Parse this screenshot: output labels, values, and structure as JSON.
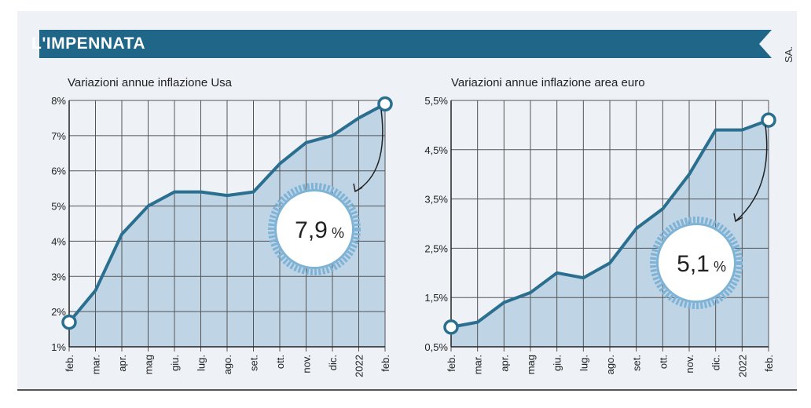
{
  "banner": {
    "title": "L'IMPENNATA",
    "credit": "SA."
  },
  "colors": {
    "banner": "#1f6688",
    "line": "#2a6f8f",
    "fill": "#b9d2e4",
    "grid": "#555555",
    "badge_ring": "#7fb3d6"
  },
  "chart_data": [
    {
      "type": "area",
      "title": "Variazioni annue inflazione Usa",
      "categories": [
        "feb.",
        "mar.",
        "apr.",
        "mag",
        "giu.",
        "lug.",
        "ago.",
        "set.",
        "ott.",
        "nov.",
        "dic.",
        "2022",
        "feb."
      ],
      "values": [
        1.7,
        2.6,
        4.2,
        5.0,
        5.4,
        5.4,
        5.3,
        5.4,
        6.2,
        6.8,
        7.0,
        7.5,
        7.9
      ],
      "ylim": [
        1,
        8
      ],
      "yticks": [
        1,
        2,
        3,
        4,
        5,
        6,
        7,
        8
      ],
      "ytick_labels": [
        "1%",
        "2%",
        "3%",
        "4%",
        "5%",
        "6%",
        "7%",
        "8%"
      ],
      "annotation": {
        "value": "7,9",
        "unit": "%"
      },
      "grid": true
    },
    {
      "type": "area",
      "title": "Variazioni annue inflazione area euro",
      "categories": [
        "feb.",
        "mar.",
        "apr.",
        "mag",
        "giu.",
        "lug.",
        "ago.",
        "set.",
        "ott.",
        "nov.",
        "dic.",
        "2022",
        "feb."
      ],
      "values": [
        0.9,
        1.0,
        1.4,
        1.6,
        2.0,
        1.9,
        2.2,
        2.9,
        3.3,
        4.0,
        4.9,
        4.9,
        5.1
      ],
      "ylim": [
        0.5,
        5.5
      ],
      "yticks": [
        0.5,
        1.5,
        2.5,
        3.5,
        4.5,
        5.5
      ],
      "ytick_labels": [
        "0,5%",
        "1,5%",
        "2,5%",
        "3,5%",
        "4,5%",
        "5,5%"
      ],
      "annotation": {
        "value": "5,1",
        "unit": "%"
      },
      "grid": true
    }
  ]
}
